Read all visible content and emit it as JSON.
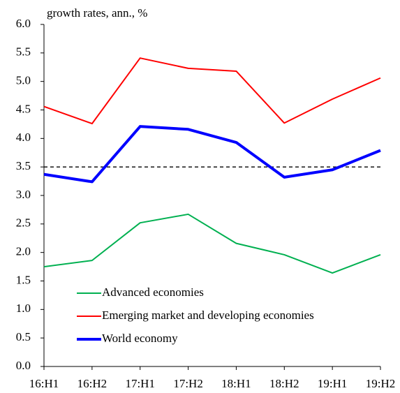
{
  "chart_data": {
    "type": "line",
    "title": "growth rates, ann., %",
    "categories": [
      "16:H1",
      "16:H2",
      "17:H1",
      "17:H2",
      "18:H1",
      "18:H2",
      "19:H1",
      "19:H2"
    ],
    "series": [
      {
        "name": "Advanced economies",
        "color": "#00b050",
        "width": 2,
        "values": [
          1.75,
          1.86,
          2.52,
          2.67,
          2.16,
          1.96,
          1.64,
          1.96
        ]
      },
      {
        "name": "Emerging market and developing economies",
        "color": "#ff0000",
        "width": 2,
        "values": [
          4.56,
          4.26,
          5.41,
          5.23,
          5.18,
          4.27,
          4.69,
          5.06
        ]
      },
      {
        "name": "World economy",
        "color": "#0000ff",
        "width": 4,
        "values": [
          3.37,
          3.24,
          4.21,
          4.16,
          3.93,
          3.32,
          3.45,
          3.79
        ]
      }
    ],
    "reference_line": {
      "value": 3.5,
      "color": "#000",
      "dashed": true
    },
    "ylim": [
      0,
      6
    ],
    "yticks": [
      {
        "value": 0,
        "label": "0.0"
      },
      {
        "value": 0.5,
        "label": "0.5"
      },
      {
        "value": 1,
        "label": "1.0"
      },
      {
        "value": 1.5,
        "label": "1.5"
      },
      {
        "value": 2,
        "label": "2.0"
      },
      {
        "value": 2.5,
        "label": "2.5"
      },
      {
        "value": 3,
        "label": "3.0"
      },
      {
        "value": 3.5,
        "label": "3.5"
      },
      {
        "value": 4,
        "label": "4.0"
      },
      {
        "value": 4.5,
        "label": "4.5"
      },
      {
        "value": 5,
        "label": "5.0"
      },
      {
        "value": 5.5,
        "label": "5.5"
      },
      {
        "value": 6,
        "label": "6.0"
      }
    ],
    "grid": false,
    "legend": "lower-left"
  }
}
